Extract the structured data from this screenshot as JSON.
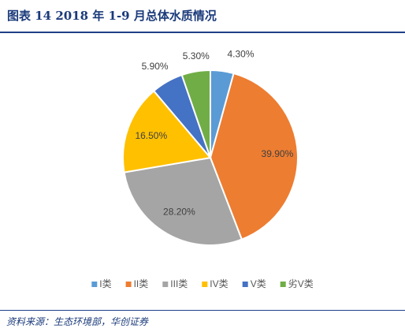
{
  "header": {
    "title": "图表 14   2018 年 1-9 月总体水质情况"
  },
  "footer": {
    "source": "资料来源：生态环境部，华创证券"
  },
  "chart_data": {
    "type": "pie",
    "title": "",
    "slices": [
      {
        "label": "I类",
        "value": 4.3,
        "value_label": "4.30%",
        "color": "#5b9bd5"
      },
      {
        "label": "II类",
        "value": 39.9,
        "value_label": "39.90%",
        "color": "#ed7d31"
      },
      {
        "label": "III类",
        "value": 28.2,
        "value_label": "28.20%",
        "color": "#a5a5a5"
      },
      {
        "label": "IV类",
        "value": 16.5,
        "value_label": "16.50%",
        "color": "#ffc000"
      },
      {
        "label": "V类",
        "value": 5.9,
        "value_label": "5.90%",
        "color": "#4472c4"
      },
      {
        "label": "劣V类",
        "value": 5.3,
        "value_label": "5.30%",
        "color": "#70ad47"
      }
    ],
    "legend_position": "bottom"
  }
}
